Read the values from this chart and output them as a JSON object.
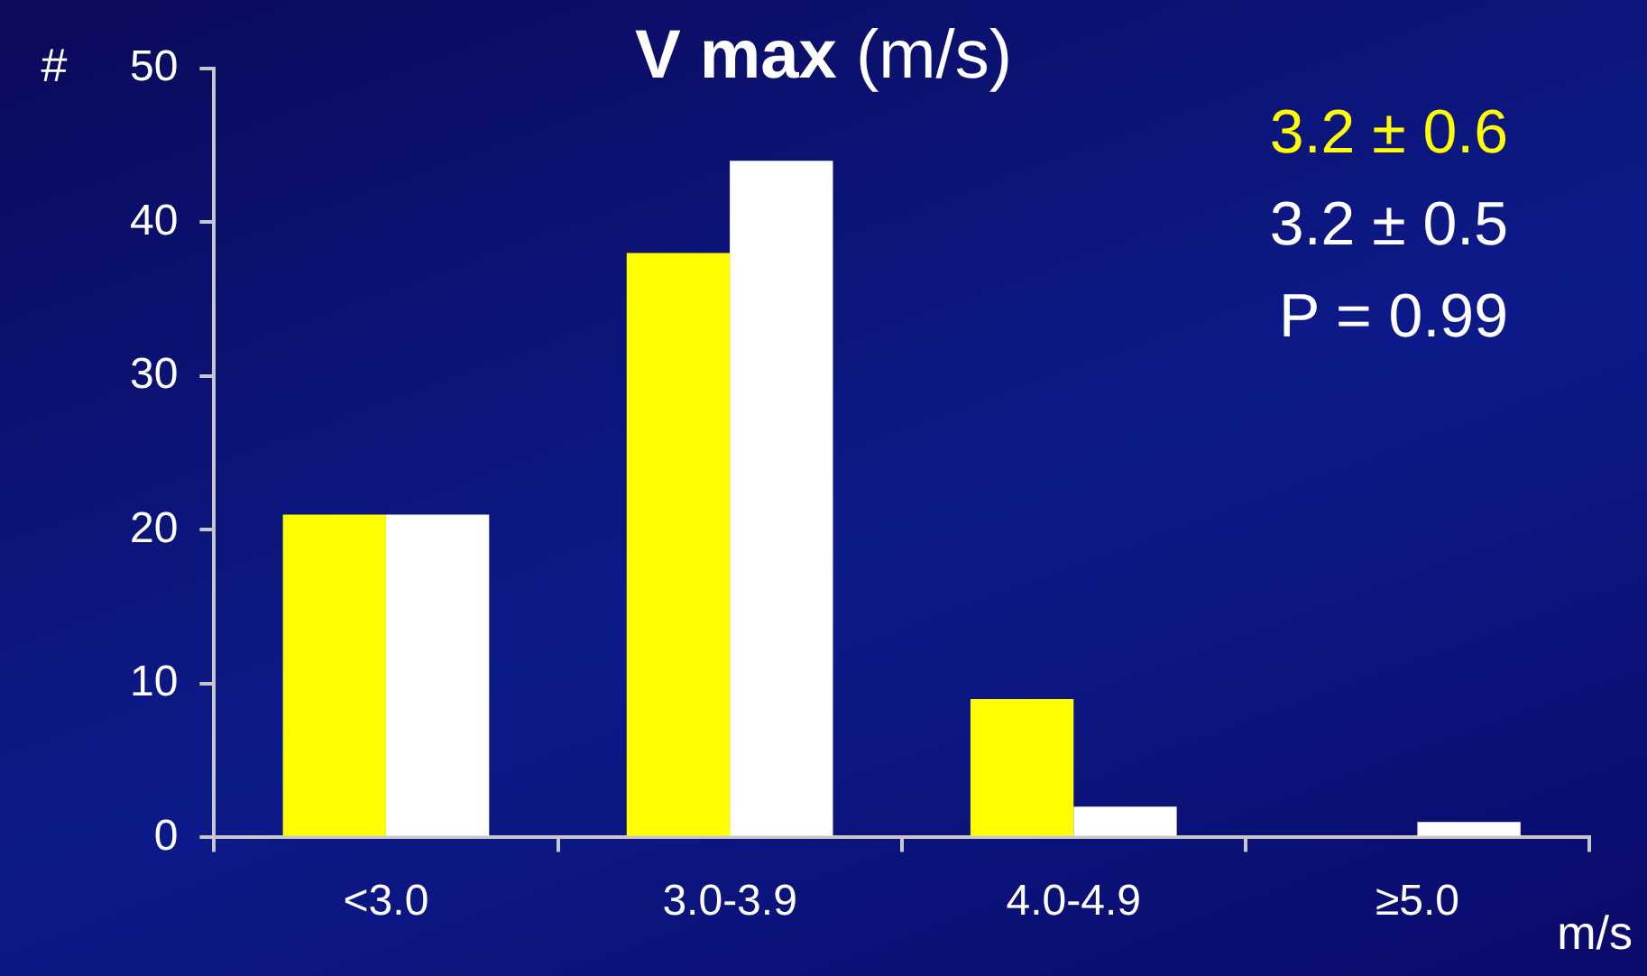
{
  "chart_data": {
    "type": "bar",
    "title": "V max (m/s)",
    "ylabel": "#",
    "xlabel": "m/s",
    "categories": [
      "<3.0",
      "3.0-3.9",
      "4.0-4.9",
      "≥5.0"
    ],
    "series": [
      {
        "color": "#ffff00",
        "values": [
          21,
          38,
          9,
          0
        ]
      },
      {
        "color": "#ffffff",
        "values": [
          21,
          44,
          2,
          1
        ]
      }
    ],
    "ylim": [
      0,
      50
    ],
    "yticks": [
      0,
      10,
      20,
      30,
      40,
      50
    ],
    "grid": false,
    "legend": false,
    "annotations": [
      "3.2 ± 0.6",
      "3.2 ± 0.5",
      "P = 0.99"
    ]
  }
}
